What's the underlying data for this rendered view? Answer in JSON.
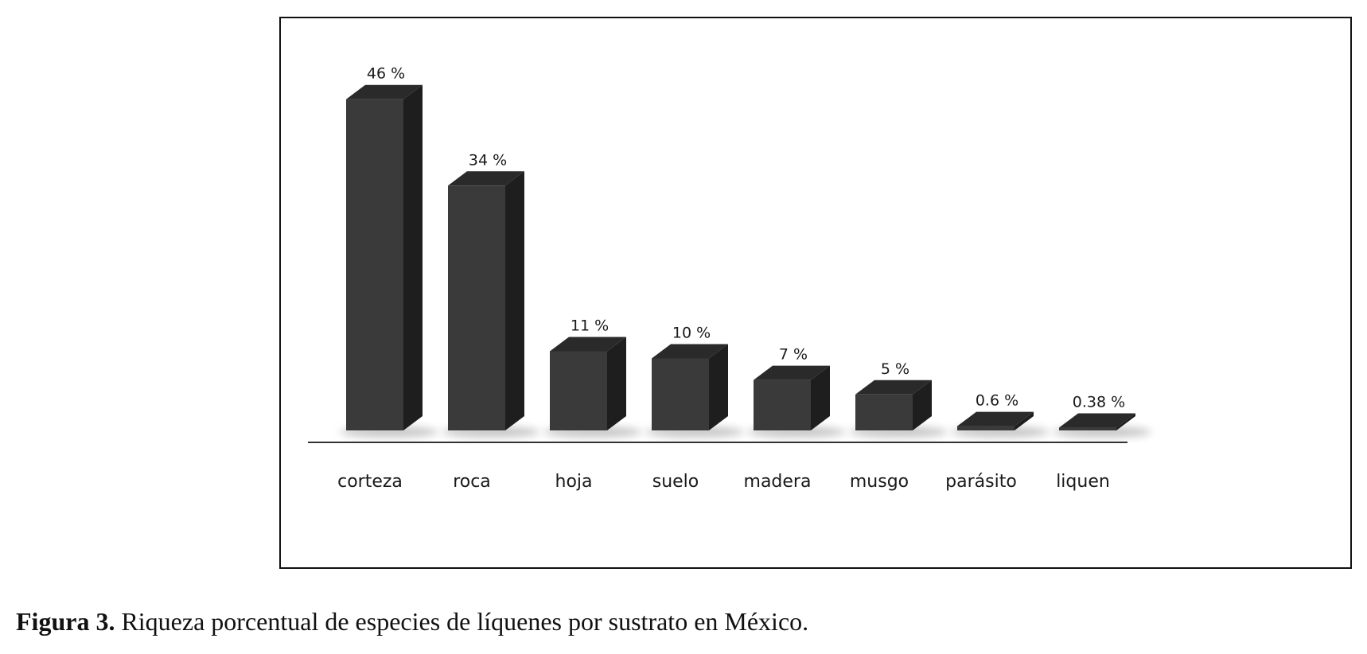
{
  "figure": {
    "label": "Figura 3.",
    "text": " Riqueza porcentual de especies de líquenes por sustrato en México."
  },
  "chart_data": {
    "type": "bar",
    "style": "3d",
    "categories": [
      "corteza",
      "roca",
      "hoja",
      "suelo",
      "madera",
      "musgo",
      "parásito",
      "liquen"
    ],
    "values": [
      46,
      34,
      11,
      10,
      7,
      5,
      0.6,
      0.38
    ],
    "value_labels": [
      "46 %",
      "34 %",
      "11 %",
      "10  %",
      "7 %",
      "5 %",
      "0.6 %",
      "0.38 %"
    ],
    "ylim": [
      0,
      50
    ],
    "grid": false,
    "legend": "none",
    "colors": {
      "bar_front": "#3a3a3a",
      "bar_side": "#1e1e1e",
      "bar_top": "#2a2a2a",
      "baseline": "#333333"
    }
  }
}
